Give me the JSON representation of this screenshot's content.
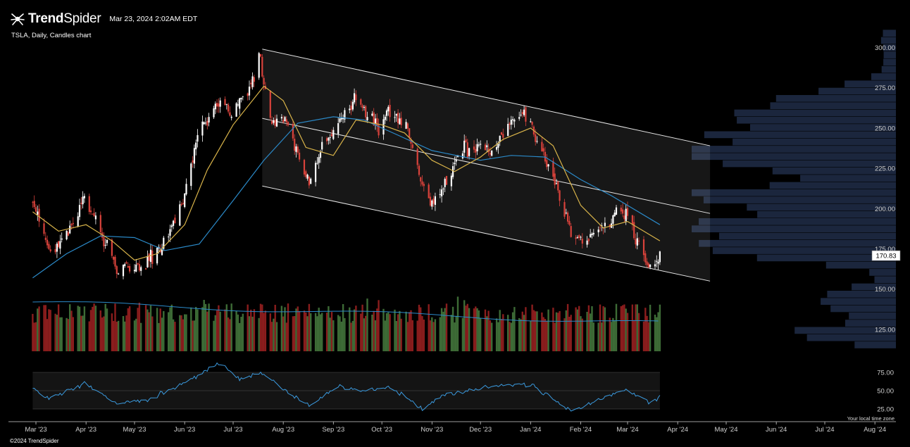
{
  "header": {
    "brand_prefix": "Trend",
    "brand_suffix": "Spider",
    "timestamp": "Mar 23, 2024 2:02AM EDT",
    "chart_label": "TSLA, Daily, Candles chart",
    "copyright": "©2024 TrendSpider",
    "tz_note": "Your local time zone"
  },
  "colors": {
    "background": "#000000",
    "up_candle": "#ffffff",
    "down_candle": "#d9423b",
    "volume_up": "#3d6b36",
    "volume_down": "#8a1d1d",
    "ma_short": "#d9b44a",
    "ma_long": "#2b8ac9",
    "channel": "#e6e6e6",
    "volume_profile": "#1e2a44",
    "rsi_line": "#3b9be0"
  },
  "chart_data": {
    "type": "candlestick",
    "symbol": "TSLA",
    "interval": "Daily",
    "last_price_label": "170.83",
    "price_axis": {
      "ticks": [
        "300.00",
        "275.00",
        "250.00",
        "225.00",
        "200.00",
        "175.00",
        "150.00",
        "125.00"
      ],
      "range": [
        111,
        312
      ]
    },
    "rsi_axis": {
      "ticks": [
        "75.00",
        "50.00",
        "25.00"
      ]
    },
    "x_axis": {
      "ticks": [
        "Mar '23",
        "Apr '23",
        "May '23",
        "Jun '23",
        "Jul '23",
        "Aug '23",
        "Sep '23",
        "Oct '23",
        "Nov '23",
        "Dec '23",
        "Jan '24",
        "Feb '24",
        "Mar '24",
        "Apr '24",
        "May '24",
        "Jun '24",
        "Jul '24",
        "Aug '24"
      ]
    },
    "price_path": [
      [
        "2023-02-27",
        205
      ],
      [
        "2023-03-10",
        172
      ],
      [
        "2023-03-20",
        185
      ],
      [
        "2023-03-31",
        206
      ],
      [
        "2023-04-10",
        185
      ],
      [
        "2023-04-20",
        162
      ],
      [
        "2023-04-28",
        162
      ],
      [
        "2023-05-10",
        168
      ],
      [
        "2023-05-19",
        178
      ],
      [
        "2023-05-31",
        203
      ],
      [
        "2023-06-09",
        245
      ],
      [
        "2023-06-21",
        265
      ],
      [
        "2023-06-30",
        258
      ],
      [
        "2023-07-10",
        273
      ],
      [
        "2023-07-18",
        292
      ],
      [
        "2023-07-24",
        256
      ],
      [
        "2023-08-04",
        252
      ],
      [
        "2023-08-17",
        215
      ],
      [
        "2023-08-25",
        238
      ],
      [
        "2023-09-06",
        258
      ],
      [
        "2023-09-15",
        268
      ],
      [
        "2023-09-29",
        250
      ],
      [
        "2023-10-06",
        262
      ],
      [
        "2023-10-17",
        249
      ],
      [
        "2023-10-26",
        214
      ],
      [
        "2023-11-01",
        202
      ],
      [
        "2023-11-10",
        215
      ],
      [
        "2023-11-20",
        238
      ],
      [
        "2023-11-30",
        238
      ],
      [
        "2023-12-07",
        237
      ],
      [
        "2023-12-18",
        252
      ],
      [
        "2023-12-29",
        258
      ],
      [
        "2024-01-08",
        234
      ],
      [
        "2024-01-17",
        214
      ],
      [
        "2024-01-26",
        183
      ],
      [
        "2024-02-05",
        181
      ],
      [
        "2024-02-14",
        188
      ],
      [
        "2024-02-23",
        198
      ],
      [
        "2024-03-01",
        197
      ],
      [
        "2024-03-08",
        178
      ],
      [
        "2024-03-15",
        163
      ],
      [
        "2024-03-21",
        170.83
      ]
    ],
    "ma_short_path": [
      [
        "2023-02-27",
        198
      ],
      [
        "2023-03-15",
        186
      ],
      [
        "2023-04-01",
        190
      ],
      [
        "2023-04-17",
        180
      ],
      [
        "2023-05-01",
        168
      ],
      [
        "2023-05-15",
        172
      ],
      [
        "2023-06-01",
        190
      ],
      [
        "2023-06-15",
        224
      ],
      [
        "2023-07-01",
        252
      ],
      [
        "2023-07-20",
        276
      ],
      [
        "2023-08-01",
        267
      ],
      [
        "2023-08-15",
        238
      ],
      [
        "2023-09-01",
        233
      ],
      [
        "2023-09-15",
        255
      ],
      [
        "2023-10-01",
        252
      ],
      [
        "2023-10-15",
        247
      ],
      [
        "2023-11-01",
        230
      ],
      [
        "2023-11-15",
        223
      ],
      [
        "2023-12-01",
        232
      ],
      [
        "2023-12-15",
        243
      ],
      [
        "2024-01-01",
        250
      ],
      [
        "2024-01-15",
        239
      ],
      [
        "2024-02-01",
        202
      ],
      [
        "2024-02-15",
        188
      ],
      [
        "2024-03-01",
        192
      ],
      [
        "2024-03-21",
        180
      ]
    ],
    "ma_long_path": [
      [
        "2023-02-27",
        157
      ],
      [
        "2023-03-20",
        172
      ],
      [
        "2023-04-10",
        183
      ],
      [
        "2023-05-01",
        182
      ],
      [
        "2023-05-20",
        174
      ],
      [
        "2023-06-10",
        178
      ],
      [
        "2023-07-01",
        205
      ],
      [
        "2023-07-20",
        230
      ],
      [
        "2023-08-10",
        253
      ],
      [
        "2023-09-01",
        257
      ],
      [
        "2023-09-20",
        255
      ],
      [
        "2023-10-10",
        246
      ],
      [
        "2023-11-01",
        236
      ],
      [
        "2023-12-01",
        230
      ],
      [
        "2023-12-20",
        233
      ],
      [
        "2024-01-10",
        232
      ],
      [
        "2024-02-01",
        218
      ],
      [
        "2024-02-20",
        208
      ],
      [
        "2024-03-21",
        190
      ]
    ],
    "trend_channel": {
      "upper": [
        [
          "2023-07-19",
          299
        ],
        [
          "2024-04-21",
          239
        ]
      ],
      "middle": [
        [
          "2023-07-19",
          256
        ],
        [
          "2024-04-21",
          197
        ]
      ],
      "lower": [
        [
          "2023-07-19",
          214
        ],
        [
          "2024-04-21",
          155
        ]
      ]
    },
    "rsi_path": [
      [
        "2023-02-27",
        52
      ],
      [
        "2023-03-10",
        40
      ],
      [
        "2023-03-31",
        60
      ],
      [
        "2023-04-20",
        33
      ],
      [
        "2023-05-10",
        38
      ],
      [
        "2023-06-01",
        62
      ],
      [
        "2023-06-15",
        78
      ],
      [
        "2023-06-23",
        88
      ],
      [
        "2023-07-05",
        65
      ],
      [
        "2023-07-19",
        74
      ],
      [
        "2023-08-01",
        52
      ],
      [
        "2023-08-17",
        30
      ],
      [
        "2023-09-05",
        58
      ],
      [
        "2023-09-20",
        48
      ],
      [
        "2023-10-06",
        56
      ],
      [
        "2023-10-26",
        25
      ],
      [
        "2023-11-10",
        45
      ],
      [
        "2023-11-30",
        52
      ],
      [
        "2023-12-15",
        58
      ],
      [
        "2024-01-02",
        58
      ],
      [
        "2024-01-26",
        22
      ],
      [
        "2024-02-08",
        33
      ],
      [
        "2024-02-28",
        52
      ],
      [
        "2024-03-15",
        34
      ],
      [
        "2024-03-21",
        42
      ]
    ]
  }
}
